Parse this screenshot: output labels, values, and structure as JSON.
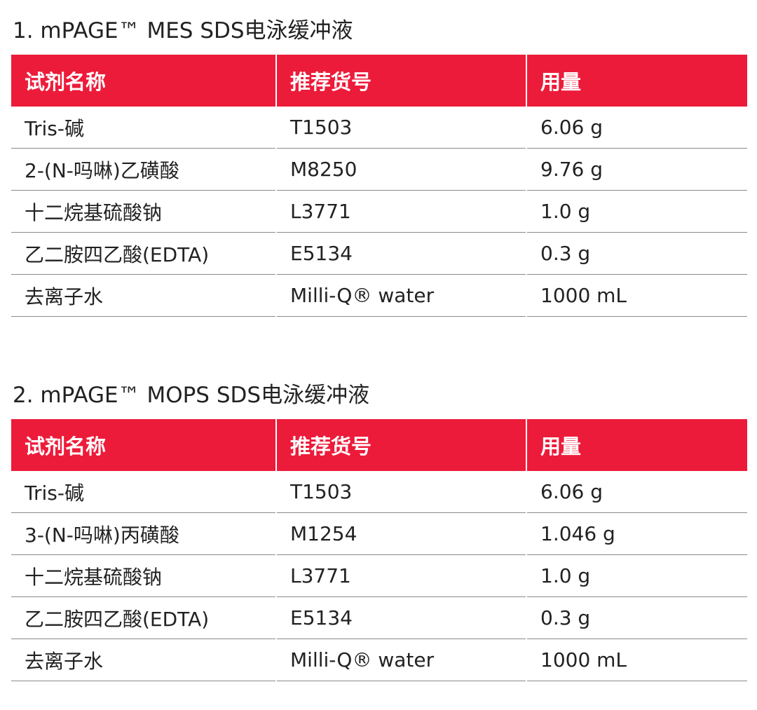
{
  "sections": [
    {
      "title": "1. mPAGE™ MES SDS电泳缓冲液",
      "headers": [
        "试剂名称",
        "推荐货号",
        "用量"
      ],
      "rows": [
        [
          "Tris-碱",
          "T1503",
          "6.06 g"
        ],
        [
          "2-(N-吗啉)乙磺酸",
          "M8250",
          "9.76 g"
        ],
        [
          "十二烷基硫酸钠",
          "L3771",
          "1.0 g"
        ],
        [
          "乙二胺四乙酸(EDTA)",
          "E5134",
          "0.3 g"
        ],
        [
          "去离子水",
          "Milli-Q® water",
          "1000 mL"
        ]
      ]
    },
    {
      "title": "2. mPAGE™ MOPS SDS电泳缓冲液",
      "headers": [
        "试剂名称",
        "推荐货号",
        "用量"
      ],
      "rows": [
        [
          "Tris-碱",
          "T1503",
          "6.06 g"
        ],
        [
          "3-(N-吗啉)丙磺酸",
          "M1254",
          "1.046 g"
        ],
        [
          "十二烷基硫酸钠",
          "L3771",
          "1.0 g"
        ],
        [
          "乙二胺四乙酸(EDTA)",
          "E5134",
          "0.3 g"
        ],
        [
          "去离子水",
          "Milli-Q® water",
          "1000 mL"
        ]
      ]
    }
  ],
  "colors": {
    "header_bg": "#ed1b3a",
    "header_text": "#ffffff",
    "row_divider": "#8a8a8a",
    "body_text": "#222222"
  }
}
